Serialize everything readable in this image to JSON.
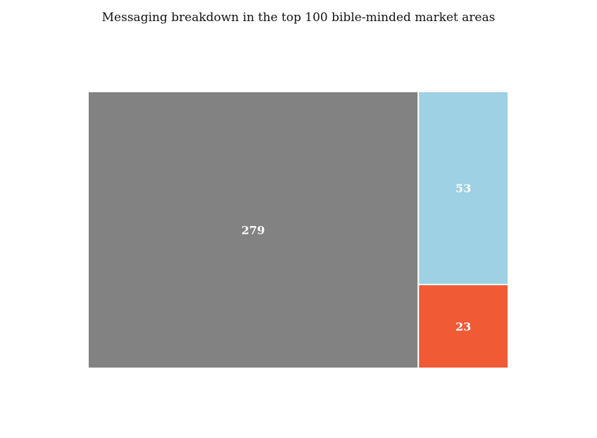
{
  "chart_data": {
    "type": "treemap",
    "title": "Messaging breakdown in the top 100 bible-minded market areas",
    "values": [
      279,
      53,
      23
    ],
    "labels": [
      "279",
      "53",
      "23"
    ],
    "colors": [
      "#828282",
      "#9ed1e3",
      "#f05a35"
    ],
    "border_color": "#ffffff"
  }
}
